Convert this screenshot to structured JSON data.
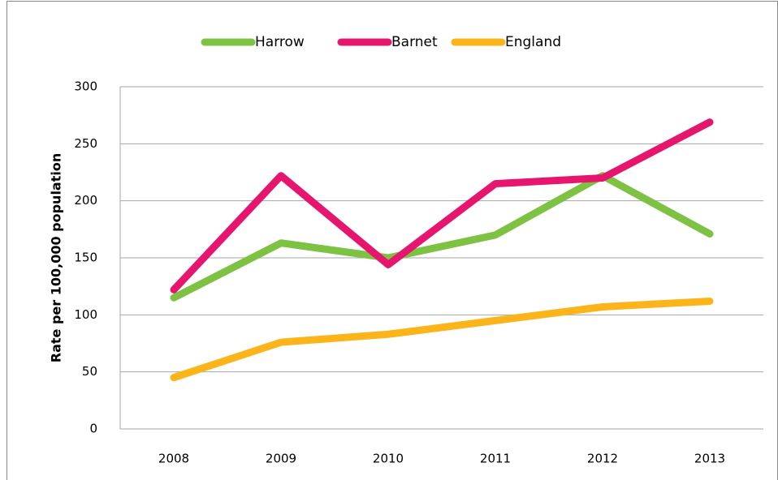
{
  "chart_data": {
    "type": "line",
    "y_label": "Rate per 100,000 population",
    "categories": [
      "2008",
      "2009",
      "2010",
      "2011",
      "2012",
      "2013"
    ],
    "series": [
      {
        "name": "Harrow",
        "color": "#7dc242",
        "values": [
          115,
          163,
          150,
          170,
          222,
          171
        ]
      },
      {
        "name": "Barnet",
        "color": "#e6156d",
        "values": [
          122,
          222,
          144,
          215,
          220,
          269
        ]
      },
      {
        "name": "England",
        "color": "#fbb51b",
        "values": [
          45,
          76,
          83,
          95,
          107,
          112
        ]
      }
    ],
    "ylim": [
      0,
      300
    ],
    "yticks": [
      0,
      50,
      100,
      150,
      200,
      250,
      300
    ],
    "grid": true,
    "legend": "top"
  }
}
